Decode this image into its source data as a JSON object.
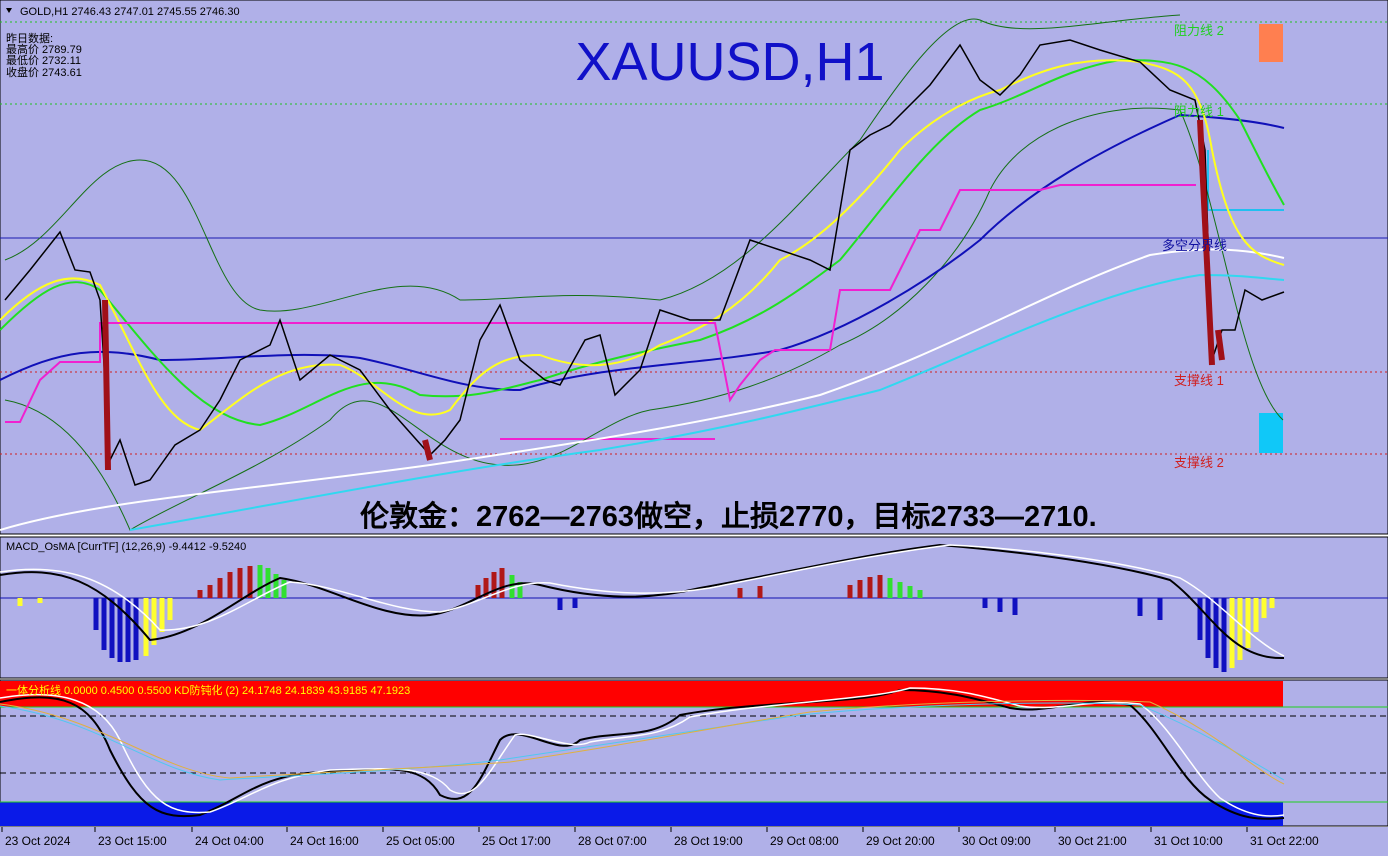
{
  "header": {
    "symbol_line": "GOLD,H1  2746.43 2747.01 2745.55 2746.30"
  },
  "prev_day": {
    "title": "昨日数据:",
    "lines": [
      "最高价 2789.79",
      "最低价 2732.11",
      "收盘价 2743.61"
    ]
  },
  "title": "XAUUSD,H1",
  "levels": [
    "阻力线 2",
    "阻力线 1",
    "多空分界线",
    "支撑线 1",
    "支撑线 2"
  ],
  "annotation": "伦敦金：2762—2763做空，止损2770，目标2733—2710.",
  "macd_label": "MACD_OsMA [CurrTF] (12,26,9) -9.4412 -9.5240",
  "kd_label": "一体分析线 0.0000 0.4500 0.5500  KD防钝化 (2) 24.1748 24.1839 43.9185 47.1923",
  "x_labels": [
    "23 Oct 2024",
    "23 Oct 15:00",
    "24 Oct 04:00",
    "24 Oct 16:00",
    "25 Oct 05:00",
    "25 Oct 17:00",
    "28 Oct 07:00",
    "28 Oct 19:00",
    "29 Oct 08:00",
    "29 Oct 20:00",
    "30 Oct 09:00",
    "30 Oct 21:00",
    "31 Oct 10:00",
    "31 Oct 22:00"
  ]
}
